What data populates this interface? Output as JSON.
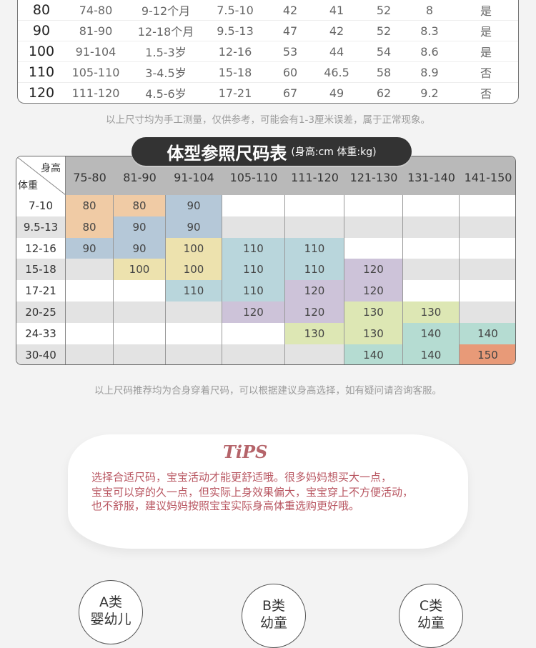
{
  "size_table": {
    "rows": [
      [
        "80",
        "74-80",
        "9-12个月",
        "7.5-10",
        "42",
        "41",
        "52",
        "8",
        "是"
      ],
      [
        "90",
        "81-90",
        "12-18个月",
        "9.5-13",
        "47",
        "42",
        "52",
        "8.3",
        "是"
      ],
      [
        "100",
        "91-104",
        "1.5-3岁",
        "12-16",
        "53",
        "44",
        "54",
        "8.6",
        "是"
      ],
      [
        "110",
        "105-110",
        "3-4.5岁",
        "15-18",
        "60",
        "46.5",
        "58",
        "8.9",
        "否"
      ],
      [
        "120",
        "111-120",
        "4.5-6岁",
        "17-21",
        "67",
        "49",
        "62",
        "9.2",
        "否"
      ]
    ]
  },
  "note1": "以上尺寸均为手工测量，仅供参考，可能会有1-3厘米误差，属于正常现象。",
  "chart": {
    "title": "体型参照尺码表",
    "units": "(身高:cm 体重:kg)",
    "corner_height": "身高",
    "corner_weight": "体重",
    "heights": [
      "75-80",
      "81-90",
      "91-104",
      "105-110",
      "111-120",
      "121-130",
      "131-140",
      "141-150"
    ],
    "weights": [
      "7-10",
      "9.5-13",
      "12-16",
      "15-18",
      "17-21",
      "20-25",
      "24-33",
      "30-40"
    ],
    "grid": [
      [
        "80",
        "80",
        "90",
        null,
        null,
        null,
        null,
        null
      ],
      [
        "80",
        "90",
        "90",
        null,
        null,
        null,
        null,
        null
      ],
      [
        "90",
        "90",
        "100",
        "110",
        "110",
        null,
        null,
        null
      ],
      [
        null,
        "100",
        "100",
        "110",
        "110",
        "120",
        null,
        null
      ],
      [
        null,
        null,
        "110",
        "110",
        "120",
        "120",
        null,
        null
      ],
      [
        null,
        null,
        null,
        "120",
        "120",
        "130",
        "130",
        null
      ],
      [
        null,
        null,
        null,
        null,
        "130",
        "130",
        "140",
        "140"
      ],
      [
        null,
        null,
        null,
        null,
        null,
        "140",
        "140",
        "150"
      ]
    ],
    "colors": {
      "80": "#f0cba5",
      "90": "#b5c8d8",
      "100": "#ede2ae",
      "110": "#b9d6dc",
      "120": "#cdc3d9",
      "130": "#dde7b4",
      "140": "#b5dcd2",
      "150": "#e89a78"
    }
  },
  "note2": "以上尺码推荐均为合身穿着尺码，可以根据建议身高选择，如有疑问请咨询客服。",
  "tips": {
    "title": "TiPS",
    "lines": [
      "选择合适尺码，宝宝活动才能更舒适哦。很多妈妈想买大一点，",
      "宝宝可以穿的久一点，但实际上身效果偏大，宝宝穿上不方便活动，",
      "也不舒服，建议妈妈按照宝宝实际身高体重选购更好哦。"
    ]
  },
  "categories": [
    {
      "l1": "A类",
      "l2": "婴幼儿"
    },
    {
      "l1": "B类",
      "l2": "幼童"
    },
    {
      "l1": "C类",
      "l2": "幼童"
    }
  ]
}
